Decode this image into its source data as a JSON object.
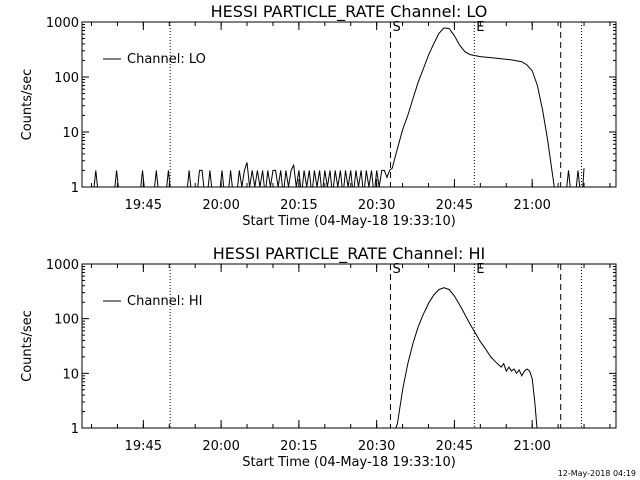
{
  "footer": {
    "timestamp": "12-May-2018 04:19"
  },
  "chart_data": [
    {
      "type": "line",
      "title": "HESSI PARTICLE_RATE Channel: LO",
      "xlabel": "Start Time (04-May-18 19:33:10)",
      "ylabel": "Counts/sec",
      "yscale": "log",
      "ylim": [
        1,
        1000
      ],
      "xlim": [
        "19:33:10",
        "21:16:10"
      ],
      "xticks": [
        "19:45",
        "20:00",
        "20:15",
        "20:30",
        "20:45",
        "21:00"
      ],
      "yticks": [
        "1",
        "10",
        "100",
        "1000"
      ],
      "grid": false,
      "legend": {
        "placement": "top-left",
        "entries": [
          "Channel: LO"
        ]
      },
      "markers": [
        {
          "time": "20:32:40",
          "style": "dashed",
          "label": "S"
        },
        {
          "time": "21:05:30",
          "style": "dashed",
          "label": ""
        },
        {
          "time": "19:50:10",
          "style": "dotted",
          "label": ""
        },
        {
          "time": "20:48:50",
          "style": "dotted",
          "label": "E"
        },
        {
          "time": "21:09:30",
          "style": "dotted",
          "label": ""
        }
      ],
      "series": [
        {
          "name": "Channel: LO",
          "points": [
            [
              "19:35:20",
              0.7
            ],
            [
              "19:35:50",
              2
            ],
            [
              "19:36:20",
              0.7
            ],
            [
              "19:39:20",
              0.7
            ],
            [
              "19:39:50",
              2
            ],
            [
              "19:40:20",
              0.7
            ],
            [
              "19:44:20",
              0.7
            ],
            [
              "19:44:50",
              2
            ],
            [
              "19:45:20",
              0.7
            ],
            [
              "19:47:00",
              0.7
            ],
            [
              "19:47:30",
              2
            ],
            [
              "19:48:00",
              0.7
            ],
            [
              "19:49:20",
              0.7
            ],
            [
              "19:49:50",
              2
            ],
            [
              "19:50:20",
              0.7
            ],
            [
              "19:53:20",
              0.7
            ],
            [
              "19:53:50",
              2
            ],
            [
              "19:54:20",
              0.7
            ],
            [
              "19:55:20",
              0.7
            ],
            [
              "19:55:50",
              2
            ],
            [
              "19:56:20",
              2
            ],
            [
              "19:56:50",
              0.7
            ],
            [
              "19:57:20",
              0.7
            ],
            [
              "19:57:50",
              2
            ],
            [
              "19:58:20",
              0.7
            ],
            [
              "19:59:40",
              0.7
            ],
            [
              "20:00:10",
              2
            ],
            [
              "20:00:40",
              0.7
            ],
            [
              "20:01:20",
              0.7
            ],
            [
              "20:01:50",
              2
            ],
            [
              "20:02:20",
              0.7
            ],
            [
              "20:03:00",
              0.7
            ],
            [
              "20:03:30",
              2
            ],
            [
              "20:04:00",
              1
            ],
            [
              "20:04:30",
              2
            ],
            [
              "20:05:00",
              2.8
            ],
            [
              "20:05:30",
              1
            ],
            [
              "20:06:00",
              2
            ],
            [
              "20:06:30",
              1
            ],
            [
              "20:07:00",
              2
            ],
            [
              "20:07:30",
              1
            ],
            [
              "20:08:00",
              2
            ],
            [
              "20:08:30",
              0.7
            ],
            [
              "20:09:00",
              2
            ],
            [
              "20:09:30",
              1
            ],
            [
              "20:10:00",
              2
            ],
            [
              "20:10:30",
              2
            ],
            [
              "20:11:00",
              1
            ],
            [
              "20:11:30",
              2
            ],
            [
              "20:12:00",
              0.7
            ],
            [
              "20:12:30",
              2
            ],
            [
              "20:13:00",
              1
            ],
            [
              "20:13:30",
              2
            ],
            [
              "20:14:00",
              2.5
            ],
            [
              "20:14:30",
              1
            ],
            [
              "20:15:00",
              2
            ],
            [
              "20:15:30",
              0.7
            ],
            [
              "20:16:00",
              2
            ],
            [
              "20:16:30",
              1
            ],
            [
              "20:17:00",
              2
            ],
            [
              "20:17:30",
              0.7
            ],
            [
              "20:18:00",
              2
            ],
            [
              "20:18:30",
              1
            ],
            [
              "20:19:00",
              2
            ],
            [
              "20:19:30",
              0.7
            ],
            [
              "20:20:00",
              2
            ],
            [
              "20:20:30",
              1
            ],
            [
              "20:21:00",
              2
            ],
            [
              "20:21:30",
              0.7
            ],
            [
              "20:22:00",
              2
            ],
            [
              "20:22:30",
              1
            ],
            [
              "20:23:00",
              2
            ],
            [
              "20:23:30",
              0.7
            ],
            [
              "20:24:00",
              2
            ],
            [
              "20:24:30",
              1
            ],
            [
              "20:25:00",
              2
            ],
            [
              "20:25:30",
              0.7
            ],
            [
              "20:26:00",
              2
            ],
            [
              "20:26:30",
              1
            ],
            [
              "20:27:00",
              2
            ],
            [
              "20:27:30",
              0.7
            ],
            [
              "20:28:00",
              2
            ],
            [
              "20:28:30",
              1
            ],
            [
              "20:29:00",
              2
            ],
            [
              "20:29:30",
              0.7
            ],
            [
              "20:30:00",
              2
            ],
            [
              "20:30:30",
              1
            ],
            [
              "20:31:00",
              2
            ],
            [
              "20:31:30",
              2
            ],
            [
              "20:32:00",
              1.5
            ],
            [
              "20:32:30",
              2
            ],
            [
              "20:33:00",
              2.2
            ],
            [
              "20:34:00",
              5
            ],
            [
              "20:35:00",
              11
            ],
            [
              "20:36:00",
              20
            ],
            [
              "20:37:00",
              40
            ],
            [
              "20:38:00",
              80
            ],
            [
              "20:39:00",
              140
            ],
            [
              "20:40:00",
              250
            ],
            [
              "20:41:00",
              400
            ],
            [
              "20:42:00",
              620
            ],
            [
              "20:43:00",
              780
            ],
            [
              "20:44:00",
              760
            ],
            [
              "20:45:00",
              560
            ],
            [
              "20:46:00",
              380
            ],
            [
              "20:47:00",
              290
            ],
            [
              "20:48:00",
              255
            ],
            [
              "20:50:00",
              235
            ],
            [
              "20:52:00",
              225
            ],
            [
              "20:54:00",
              215
            ],
            [
              "20:56:00",
              205
            ],
            [
              "20:58:00",
              190
            ],
            [
              "20:59:00",
              165
            ],
            [
              "21:00:00",
              130
            ],
            [
              "21:01:00",
              70
            ],
            [
              "21:02:00",
              25
            ],
            [
              "21:03:00",
              7
            ],
            [
              "21:04:00",
              1.5
            ],
            [
              "21:04:30",
              0.7
            ],
            [
              "21:06:30",
              0.7
            ],
            [
              "21:07:00",
              2
            ],
            [
              "21:07:30",
              0.7
            ],
            [
              "21:08:20",
              0.7
            ],
            [
              "21:08:50",
              2
            ],
            [
              "21:09:20",
              0.7
            ],
            [
              "21:09:40",
              0.7
            ],
            [
              "21:10:00",
              2.2
            ]
          ]
        }
      ]
    },
    {
      "type": "line",
      "title": "HESSI PARTICLE_RATE Channel: HI",
      "xlabel": "Start Time (04-May-18 19:33:10)",
      "ylabel": "Counts/sec",
      "yscale": "log",
      "ylim": [
        1,
        1000
      ],
      "xlim": [
        "19:33:10",
        "21:16:10"
      ],
      "xticks": [
        "19:45",
        "20:00",
        "20:15",
        "20:30",
        "20:45",
        "21:00"
      ],
      "yticks": [
        "1",
        "10",
        "100",
        "1000"
      ],
      "grid": false,
      "legend": {
        "placement": "top-left",
        "entries": [
          "Channel: HI"
        ]
      },
      "markers": [
        {
          "time": "20:32:40",
          "style": "dashed",
          "label": "S"
        },
        {
          "time": "21:05:30",
          "style": "dashed",
          "label": ""
        },
        {
          "time": "19:50:10",
          "style": "dotted",
          "label": ""
        },
        {
          "time": "20:48:50",
          "style": "dotted",
          "label": "E"
        },
        {
          "time": "21:09:30",
          "style": "dotted",
          "label": ""
        }
      ],
      "series": [
        {
          "name": "Channel: HI",
          "points": [
            [
              "20:33:20",
              0.8
            ],
            [
              "20:34:00",
              1.2
            ],
            [
              "20:35:00",
              5
            ],
            [
              "20:36:00",
              15
            ],
            [
              "20:37:00",
              35
            ],
            [
              "20:38:00",
              70
            ],
            [
              "20:39:00",
              120
            ],
            [
              "20:40:00",
              190
            ],
            [
              "20:41:00",
              270
            ],
            [
              "20:42:00",
              340
            ],
            [
              "20:43:00",
              370
            ],
            [
              "20:44:00",
              340
            ],
            [
              "20:45:00",
              260
            ],
            [
              "20:46:00",
              180
            ],
            [
              "20:47:00",
              120
            ],
            [
              "20:48:00",
              80
            ],
            [
              "20:49:00",
              55
            ],
            [
              "20:50:00",
              38
            ],
            [
              "20:51:00",
              28
            ],
            [
              "20:52:00",
              20
            ],
            [
              "20:53:00",
              16
            ],
            [
              "20:54:00",
              13
            ],
            [
              "20:54:30",
              15
            ],
            [
              "20:55:00",
              11
            ],
            [
              "20:55:30",
              13
            ],
            [
              "20:56:00",
              11
            ],
            [
              "20:56:30",
              12
            ],
            [
              "20:57:00",
              10
            ],
            [
              "20:57:30",
              11.5
            ],
            [
              "20:58:00",
              9
            ],
            [
              "20:58:30",
              11
            ],
            [
              "20:59:00",
              12
            ],
            [
              "20:59:30",
              11
            ],
            [
              "21:00:00",
              8
            ],
            [
              "21:00:30",
              3
            ],
            [
              "21:01:00",
              0.8
            ]
          ]
        }
      ]
    }
  ]
}
